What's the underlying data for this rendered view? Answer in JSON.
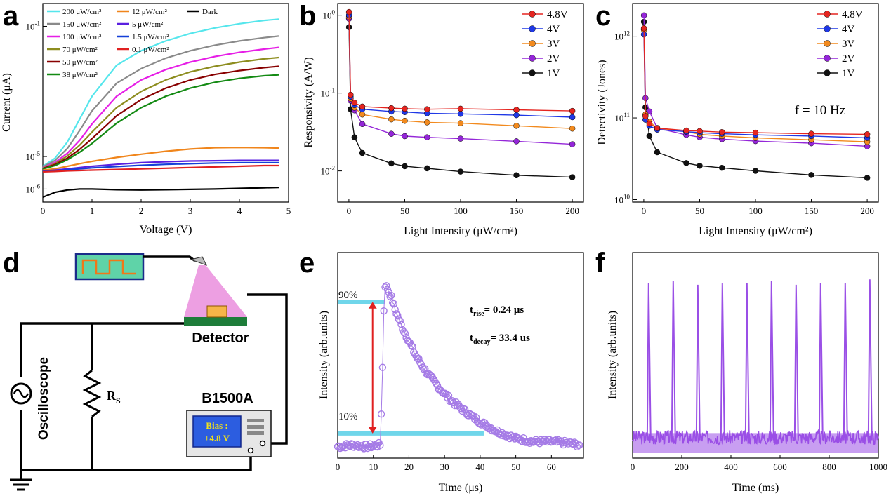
{
  "colors": {
    "c200": "#55e6ec",
    "c150": "#8a8a8a",
    "c100": "#e61ee6",
    "c70": "#8d8d1f",
    "c50": "#880000",
    "c38": "#138a13",
    "c12": "#f0851b",
    "c5": "#5a1fe0",
    "c1_5": "#1440d8",
    "c0_1": "#e02020",
    "cDark": "#000000",
    "v48": "#e52520",
    "v4": "#1f38e6",
    "v3": "#f28a1e",
    "v2": "#9426d8",
    "v1": "#111111",
    "pulse": "#a57be6",
    "pulse_f": "#9a4fe6",
    "marker": "#70d6ea",
    "arrow": "#e02020"
  },
  "panel_labels": {
    "a": "a",
    "b": "b",
    "c": "c",
    "d": "d",
    "e": "e",
    "f": "f"
  },
  "chart_data": [
    {
      "id": "a",
      "type": "line",
      "title": "",
      "xlabel": "Voltage (V)",
      "ylabel": "Current (μA)",
      "xlim": [
        0,
        5
      ],
      "ylim_log10": [
        -6.4,
        -0.3
      ],
      "yscale": "log",
      "xticks": [
        "0",
        "1",
        "2",
        "3",
        "4",
        "5"
      ],
      "yticks": [
        {
          "base": "10",
          "exp": "-6",
          "log": -6
        },
        {
          "base": "10",
          "exp": "-5",
          "log": -5
        },
        {
          "base": "10",
          "exp": "-1",
          "log": -1
        }
      ],
      "legend_position": "top",
      "x": [
        0,
        0.25,
        0.5,
        0.75,
        1.0,
        1.5,
        2.0,
        2.5,
        3.0,
        3.5,
        4.0,
        4.5,
        4.8
      ],
      "series": [
        {
          "name": "200 μW/cm²",
          "color_key": "c200",
          "log10_values": [
            -5.3,
            -5.05,
            -4.55,
            -3.85,
            -3.15,
            -2.2,
            -1.75,
            -1.45,
            -1.22,
            -1.05,
            -0.92,
            -0.82,
            -0.78
          ]
        },
        {
          "name": "150 μW/cm²",
          "color_key": "c150",
          "log10_values": [
            -5.32,
            -5.12,
            -4.75,
            -4.2,
            -3.6,
            -2.75,
            -2.3,
            -1.98,
            -1.75,
            -1.58,
            -1.45,
            -1.35,
            -1.3
          ]
        },
        {
          "name": "100 μW/cm²",
          "color_key": "c100",
          "log10_values": [
            -5.35,
            -5.18,
            -4.9,
            -4.5,
            -4.0,
            -3.15,
            -2.65,
            -2.33,
            -2.1,
            -1.93,
            -1.8,
            -1.7,
            -1.65
          ]
        },
        {
          "name": "70 μW/cm²",
          "color_key": "c70",
          "log10_values": [
            -5.36,
            -5.22,
            -4.98,
            -4.65,
            -4.25,
            -3.5,
            -3.0,
            -2.65,
            -2.4,
            -2.23,
            -2.1,
            -2.0,
            -1.96
          ]
        },
        {
          "name": "50 μW/cm²",
          "color_key": "c50",
          "log10_values": [
            -5.37,
            -5.25,
            -5.05,
            -4.78,
            -4.45,
            -3.75,
            -3.25,
            -2.9,
            -2.65,
            -2.48,
            -2.36,
            -2.27,
            -2.23
          ]
        },
        {
          "name": "38 μW/cm²",
          "color_key": "c38",
          "log10_values": [
            -5.38,
            -5.28,
            -5.1,
            -4.87,
            -4.6,
            -3.98,
            -3.5,
            -3.15,
            -2.9,
            -2.72,
            -2.6,
            -2.52,
            -2.49
          ]
        },
        {
          "name": "12 μW/cm²",
          "color_key": "c12",
          "log10_values": [
            -5.42,
            -5.38,
            -5.3,
            -5.22,
            -5.15,
            -5.03,
            -4.93,
            -4.84,
            -4.77,
            -4.73,
            -4.72,
            -4.73,
            -4.74
          ]
        },
        {
          "name": "5 μW/cm²",
          "color_key": "c5",
          "log10_values": [
            -5.45,
            -5.42,
            -5.38,
            -5.34,
            -5.3,
            -5.24,
            -5.19,
            -5.16,
            -5.14,
            -5.13,
            -5.12,
            -5.12,
            -5.12
          ]
        },
        {
          "name": "1.5 μW/cm²",
          "color_key": "c1_5",
          "log10_values": [
            -5.46,
            -5.44,
            -5.41,
            -5.38,
            -5.35,
            -5.31,
            -5.27,
            -5.24,
            -5.22,
            -5.2,
            -5.19,
            -5.19,
            -5.19
          ]
        },
        {
          "name": "0.1 μW/cm²",
          "color_key": "c0_1",
          "log10_values": [
            -5.47,
            -5.46,
            -5.44,
            -5.43,
            -5.42,
            -5.4,
            -5.38,
            -5.36,
            -5.34,
            -5.32,
            -5.3,
            -5.28,
            -5.28
          ]
        },
        {
          "name": "Dark",
          "color_key": "cDark",
          "log10_values": [
            -6.25,
            -6.1,
            -6.03,
            -6.0,
            -6.0,
            -6.02,
            -6.03,
            -6.02,
            -6.01,
            -6.0,
            -5.98,
            -5.96,
            -5.95
          ]
        }
      ]
    },
    {
      "id": "b",
      "type": "line",
      "title": "",
      "xlabel": "Light Intensity (μW/cm²)",
      "ylabel": "Responsivity (A/W)",
      "xlim": [
        -10,
        210
      ],
      "ylim_log10": [
        -2.4,
        0.15
      ],
      "yscale": "log",
      "xticks": [
        "0",
        "50",
        "100",
        "150",
        "200"
      ],
      "yticks": [
        {
          "base": "10",
          "exp": "0",
          "log": 0
        },
        {
          "base": "10",
          "exp": "-1",
          "log": -1
        },
        {
          "base": "10",
          "exp": "-2",
          "log": -2
        }
      ],
      "legend_position": "top-right",
      "x": [
        0.1,
        1.5,
        5,
        12,
        38,
        50,
        70,
        100,
        150,
        200
      ],
      "series": [
        {
          "name": "4.8V",
          "color_key": "v48",
          "values": [
            1.1,
            0.095,
            0.075,
            0.067,
            0.064,
            0.063,
            0.062,
            0.063,
            0.061,
            0.059
          ]
        },
        {
          "name": "4V",
          "color_key": "v4",
          "values": [
            1.0,
            0.09,
            0.07,
            0.062,
            0.058,
            0.057,
            0.055,
            0.054,
            0.052,
            0.049
          ]
        },
        {
          "name": "3V",
          "color_key": "v3",
          "values": [
            0.95,
            0.085,
            0.065,
            0.053,
            0.046,
            0.044,
            0.042,
            0.041,
            0.038,
            0.035
          ]
        },
        {
          "name": "2V",
          "color_key": "v2",
          "values": [
            0.9,
            0.08,
            0.06,
            0.04,
            0.03,
            0.028,
            0.027,
            0.026,
            0.024,
            0.022
          ]
        },
        {
          "name": "1V",
          "color_key": "v1",
          "values": [
            0.7,
            0.062,
            0.027,
            0.017,
            0.0125,
            0.0115,
            0.0108,
            0.0098,
            0.0088,
            0.0083
          ]
        }
      ]
    },
    {
      "id": "c",
      "type": "line",
      "title": "",
      "xlabel": "Light Intensity (μW/cm²)",
      "ylabel": "Detectivity (Jones)",
      "xlim": [
        -10,
        210
      ],
      "ylim_log10": [
        9.97,
        12.4
      ],
      "yscale": "log",
      "xticks": [
        "0",
        "50",
        "100",
        "150",
        "200"
      ],
      "yticks": [
        {
          "base": "10",
          "exp": "12",
          "log": 12
        },
        {
          "base": "10",
          "exp": "11",
          "log": 11
        },
        {
          "base": "10",
          "exp": "10",
          "log": 10
        }
      ],
      "legend_position": "top-right",
      "annotation": "f = 10 Hz",
      "x": [
        0.1,
        1.5,
        5,
        12,
        38,
        50,
        70,
        100,
        150,
        200
      ],
      "series": [
        {
          "name": "4.8V",
          "color_key": "v48",
          "values": [
            1250000000000.0,
            105000000000.0,
            85000000000.0,
            75000000000.0,
            70000000000.0,
            69000000000.0,
            67000000000.0,
            66000000000.0,
            64000000000.0,
            63000000000.0
          ]
        },
        {
          "name": "4V",
          "color_key": "v4",
          "values": [
            1050000000000.0,
            95000000000.0,
            80000000000.0,
            72000000000.0,
            68000000000.0,
            66000000000.0,
            64000000000.0,
            62000000000.0,
            60000000000.0,
            57000000000.0
          ]
        },
        {
          "name": "3V",
          "color_key": "v3",
          "values": [
            1200000000000.0,
            110000000000.0,
            90000000000.0,
            75000000000.0,
            68000000000.0,
            63000000000.0,
            60000000000.0,
            57000000000.0,
            54000000000.0,
            51000000000.0
          ]
        },
        {
          "name": "2V",
          "color_key": "v2",
          "values": [
            1800000000000.0,
            175000000000.0,
            120000000000.0,
            75000000000.0,
            62000000000.0,
            58000000000.0,
            55000000000.0,
            52000000000.0,
            49000000000.0,
            45000000000.0
          ]
        },
        {
          "name": "1V",
          "color_key": "v1",
          "values": [
            1500000000000.0,
            135000000000.0,
            60000000000.0,
            38000000000.0,
            28000000000.0,
            26000000000.0,
            24500000000.0,
            22500000000.0,
            20000000000.0,
            18500000000.0
          ]
        }
      ]
    },
    {
      "id": "e",
      "type": "scatter",
      "title": "",
      "xlabel": "Time (μs)",
      "ylabel": "Intensity (arb.units)",
      "xlim": [
        0,
        69
      ],
      "ylim": [
        -0.05,
        1.2
      ],
      "xticks": [
        "0",
        "10",
        "20",
        "30",
        "40",
        "50",
        "60"
      ],
      "legend_position": "none",
      "level_90_label": "90%",
      "level_10_label": "10%",
      "t_rise_label": "t",
      "t_rise_sub": "rise",
      "t_rise_value": "= 0.24 μs",
      "t_decay_label": "t",
      "t_decay_sub": "decay",
      "t_decay_value": "= 33.4 us",
      "x": [
        0,
        4,
        8,
        12,
        12.6,
        13,
        13.3,
        14,
        15,
        16,
        18,
        20,
        22,
        25,
        28,
        30,
        33,
        36,
        40,
        45,
        50,
        55,
        60,
        65,
        68
      ],
      "values": [
        0.02,
        0.03,
        0.02,
        0.03,
        0.5,
        0.9,
        1.0,
        0.98,
        0.93,
        0.86,
        0.75,
        0.66,
        0.57,
        0.47,
        0.39,
        0.34,
        0.28,
        0.23,
        0.17,
        0.11,
        0.07,
        0.05,
        0.05,
        0.04,
        0.03
      ]
    },
    {
      "id": "f",
      "type": "line",
      "title": "",
      "xlabel": "Time (ms)",
      "ylabel": "Intensity (arb.units)",
      "xlim": [
        0,
        1000
      ],
      "ylim": [
        -0.05,
        1.1
      ],
      "xticks": [
        "0",
        "200",
        "400",
        "600",
        "800",
        "1000"
      ],
      "legend_position": "none",
      "pulse_times_ms": [
        65,
        165,
        265,
        365,
        465,
        565,
        665,
        765,
        865,
        965
      ],
      "pulse_peaks": [
        0.93,
        0.94,
        0.92,
        0.93,
        0.93,
        0.94,
        0.92,
        0.93,
        0.93,
        0.95
      ],
      "baseline": 0.05
    }
  ],
  "schematic": {
    "detector_label": "Detector",
    "oscilloscope_label": "Oscilloscope",
    "resistor_label": "R",
    "resistor_sub": "S",
    "instrument_label": "B1500A",
    "bias_line1": "Bias :",
    "bias_line2": "+4.8 V"
  }
}
